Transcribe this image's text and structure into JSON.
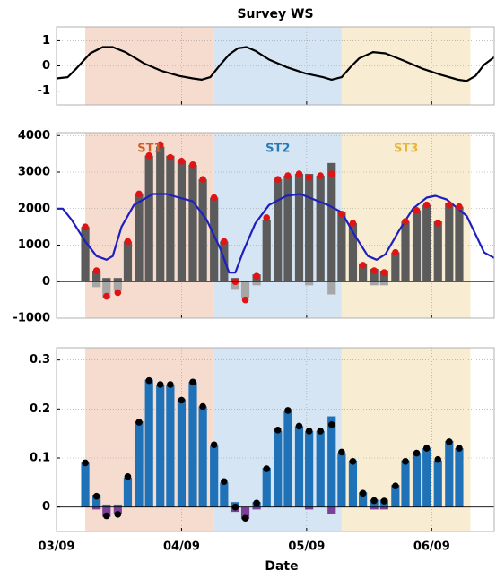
{
  "chart_data": [
    {
      "type": "line",
      "title": "Survey WS",
      "xlim": [
        3,
        6.5
      ],
      "xticks": [
        3,
        4,
        5,
        6
      ],
      "ylim": [
        -1.55,
        1.55
      ],
      "yticks": [
        -1,
        0,
        1
      ],
      "grid": true,
      "regions": [
        {
          "start": 3.23,
          "end": 4.26,
          "color": "#f6dccf"
        },
        {
          "start": 4.26,
          "end": 5.28,
          "color": "#d6e5f3"
        },
        {
          "start": 5.28,
          "end": 6.31,
          "color": "#f8ecd2"
        }
      ],
      "x": [
        3.0,
        3.09,
        3.16,
        3.27,
        3.37,
        3.45,
        3.55,
        3.7,
        3.84,
        3.98,
        4.09,
        4.16,
        4.23,
        4.31,
        4.38,
        4.45,
        4.52,
        4.59,
        4.7,
        4.84,
        4.99,
        5.13,
        5.2,
        5.28,
        5.35,
        5.42,
        5.53,
        5.63,
        5.78,
        5.92,
        6.07,
        6.21,
        6.28,
        6.35,
        6.42,
        6.5
      ],
      "series": [
        {
          "type": "line",
          "color": "#000000",
          "values": [
            -0.5,
            -0.45,
            -0.1,
            0.5,
            0.75,
            0.75,
            0.55,
            0.1,
            -0.2,
            -0.4,
            -0.5,
            -0.55,
            -0.45,
            0.05,
            0.45,
            0.7,
            0.75,
            0.6,
            0.25,
            -0.05,
            -0.3,
            -0.45,
            -0.55,
            -0.45,
            -0.05,
            0.3,
            0.55,
            0.5,
            0.2,
            -0.1,
            -0.35,
            -0.55,
            -0.6,
            -0.4,
            0.05,
            0.35
          ]
        }
      ]
    },
    {
      "type": "bar",
      "xlim": [
        3,
        6.5
      ],
      "xticks": [
        3,
        4,
        5,
        6
      ],
      "ylim": [
        -1000,
        4080
      ],
      "yticks": [
        -1000,
        0,
        1000,
        2000,
        3000,
        4000
      ],
      "grid": true,
      "regions": [
        {
          "start": 3.23,
          "end": 4.26,
          "color": "#f6dccf",
          "label": "ST1",
          "label_color": "#cf5f2a"
        },
        {
          "start": 4.26,
          "end": 5.28,
          "color": "#d6e5f3",
          "label": "ST2",
          "label_color": "#2b79b3"
        },
        {
          "start": 5.28,
          "end": 6.31,
          "color": "#f8ecd2",
          "label": "ST3",
          "label_color": "#e7b43c"
        }
      ],
      "x": [
        3.23,
        3.32,
        3.4,
        3.49,
        3.57,
        3.66,
        3.74,
        3.83,
        3.91,
        4.0,
        4.09,
        4.17,
        4.26,
        4.34,
        4.43,
        4.51,
        4.6,
        4.68,
        4.77,
        4.85,
        4.94,
        5.02,
        5.11,
        5.2,
        5.28,
        5.37,
        5.45,
        5.54,
        5.62,
        5.71,
        5.79,
        5.88,
        5.96,
        6.05,
        6.14,
        6.22
      ],
      "series": [
        {
          "type": "bar",
          "color": "#a6a6a6",
          "values": [
            0,
            -150,
            -450,
            -250,
            0,
            0,
            0,
            0,
            0,
            0,
            0,
            0,
            0,
            0,
            -200,
            -450,
            -100,
            0,
            0,
            0,
            0,
            -100,
            0,
            -350,
            0,
            0,
            0,
            -100,
            -100,
            0,
            0,
            0,
            0,
            0,
            0,
            0
          ]
        },
        {
          "type": "bar",
          "color": "#5b5b5b",
          "values": [
            1500,
            300,
            100,
            100,
            1100,
            2400,
            3450,
            3700,
            3450,
            3300,
            3200,
            2800,
            2300,
            1100,
            100,
            0,
            200,
            1700,
            2800,
            2900,
            2950,
            2950,
            2900,
            3250,
            1900,
            1600,
            500,
            350,
            300,
            800,
            1650,
            1950,
            2100,
            1650,
            2150,
            2050
          ]
        },
        {
          "type": "line",
          "color": "#1f1fbf",
          "x": [
            3.0,
            3.05,
            3.12,
            3.23,
            3.32,
            3.4,
            3.45,
            3.52,
            3.62,
            3.77,
            3.88,
            3.98,
            4.09,
            4.2,
            4.31,
            4.38,
            4.43,
            4.49,
            4.59,
            4.7,
            4.84,
            4.95,
            5.06,
            5.17,
            5.28,
            5.38,
            5.49,
            5.56,
            5.63,
            5.74,
            5.85,
            5.96,
            6.03,
            6.12,
            6.21,
            6.28,
            6.35,
            6.42,
            6.5
          ],
          "values": [
            2000,
            2000,
            1700,
            1100,
            700,
            600,
            700,
            1500,
            2100,
            2400,
            2400,
            2300,
            2200,
            1700,
            900,
            250,
            250,
            800,
            1600,
            2100,
            2350,
            2400,
            2250,
            2100,
            1900,
            1300,
            700,
            600,
            750,
            1400,
            2000,
            2300,
            2350,
            2250,
            2000,
            1800,
            1300,
            800,
            650
          ]
        },
        {
          "type": "scatter",
          "color": "#e01414",
          "values": [
            1500,
            300,
            -400,
            -300,
            1100,
            2400,
            3450,
            3750,
            3400,
            3300,
            3200,
            2800,
            2300,
            1100,
            0,
            -500,
            150,
            1750,
            2800,
            2900,
            2950,
            2850,
            2900,
            2950,
            1850,
            1600,
            450,
            300,
            250,
            800,
            1650,
            1950,
            2100,
            1600,
            2100,
            2050
          ]
        }
      ]
    },
    {
      "type": "bar",
      "xlabel": "Date",
      "xlim": [
        3,
        6.5
      ],
      "xticks": [
        {
          "value": 3,
          "label": "03/09"
        },
        {
          "value": 4,
          "label": "04/09"
        },
        {
          "value": 5,
          "label": "05/09"
        },
        {
          "value": 6,
          "label": "06/09"
        }
      ],
      "ylim": [
        -0.05,
        0.325
      ],
      "yticks": [
        0,
        0.1,
        0.2,
        0.3
      ],
      "grid": true,
      "regions": [
        {
          "start": 3.23,
          "end": 4.26,
          "color": "#f6dccf"
        },
        {
          "start": 4.26,
          "end": 5.28,
          "color": "#d6e5f3"
        },
        {
          "start": 5.28,
          "end": 6.31,
          "color": "#f8ecd2"
        }
      ],
      "x": [
        3.23,
        3.32,
        3.4,
        3.49,
        3.57,
        3.66,
        3.74,
        3.83,
        3.91,
        4.0,
        4.09,
        4.17,
        4.26,
        4.34,
        4.43,
        4.51,
        4.6,
        4.68,
        4.77,
        4.85,
        4.94,
        5.02,
        5.11,
        5.2,
        5.28,
        5.37,
        5.45,
        5.54,
        5.62,
        5.71,
        5.79,
        5.88,
        5.96,
        6.05,
        6.14,
        6.22
      ],
      "series": [
        {
          "type": "bar",
          "color": "#7d3f98",
          "values": [
            0,
            -0.005,
            -0.02,
            -0.015,
            0,
            0,
            0,
            0,
            0,
            0,
            0,
            0,
            0,
            0,
            -0.01,
            -0.025,
            -0.005,
            0,
            0,
            0,
            0,
            -0.005,
            0,
            -0.015,
            0,
            0,
            0,
            -0.005,
            -0.005,
            0,
            0,
            0,
            0,
            0,
            0,
            0
          ]
        },
        {
          "type": "bar",
          "color": "#1f72b8",
          "values": [
            0.09,
            0.025,
            0.005,
            0.005,
            0.06,
            0.175,
            0.26,
            0.25,
            0.25,
            0.22,
            0.255,
            0.205,
            0.125,
            0.05,
            0.01,
            0,
            0.01,
            0.08,
            0.155,
            0.195,
            0.165,
            0.155,
            0.155,
            0.185,
            0.11,
            0.095,
            0.03,
            0.015,
            0.015,
            0.045,
            0.095,
            0.11,
            0.12,
            0.095,
            0.135,
            0.12
          ]
        },
        {
          "type": "scatter",
          "color": "#000000",
          "values": [
            0.09,
            0.022,
            -0.018,
            -0.015,
            0.062,
            0.173,
            0.258,
            0.25,
            0.25,
            0.218,
            0.255,
            0.205,
            0.127,
            0.052,
            0,
            -0.023,
            0.008,
            0.078,
            0.157,
            0.197,
            0.165,
            0.155,
            0.155,
            0.168,
            0.112,
            0.093,
            0.028,
            0.013,
            0.012,
            0.043,
            0.093,
            0.11,
            0.12,
            0.097,
            0.133,
            0.12
          ]
        }
      ]
    }
  ]
}
